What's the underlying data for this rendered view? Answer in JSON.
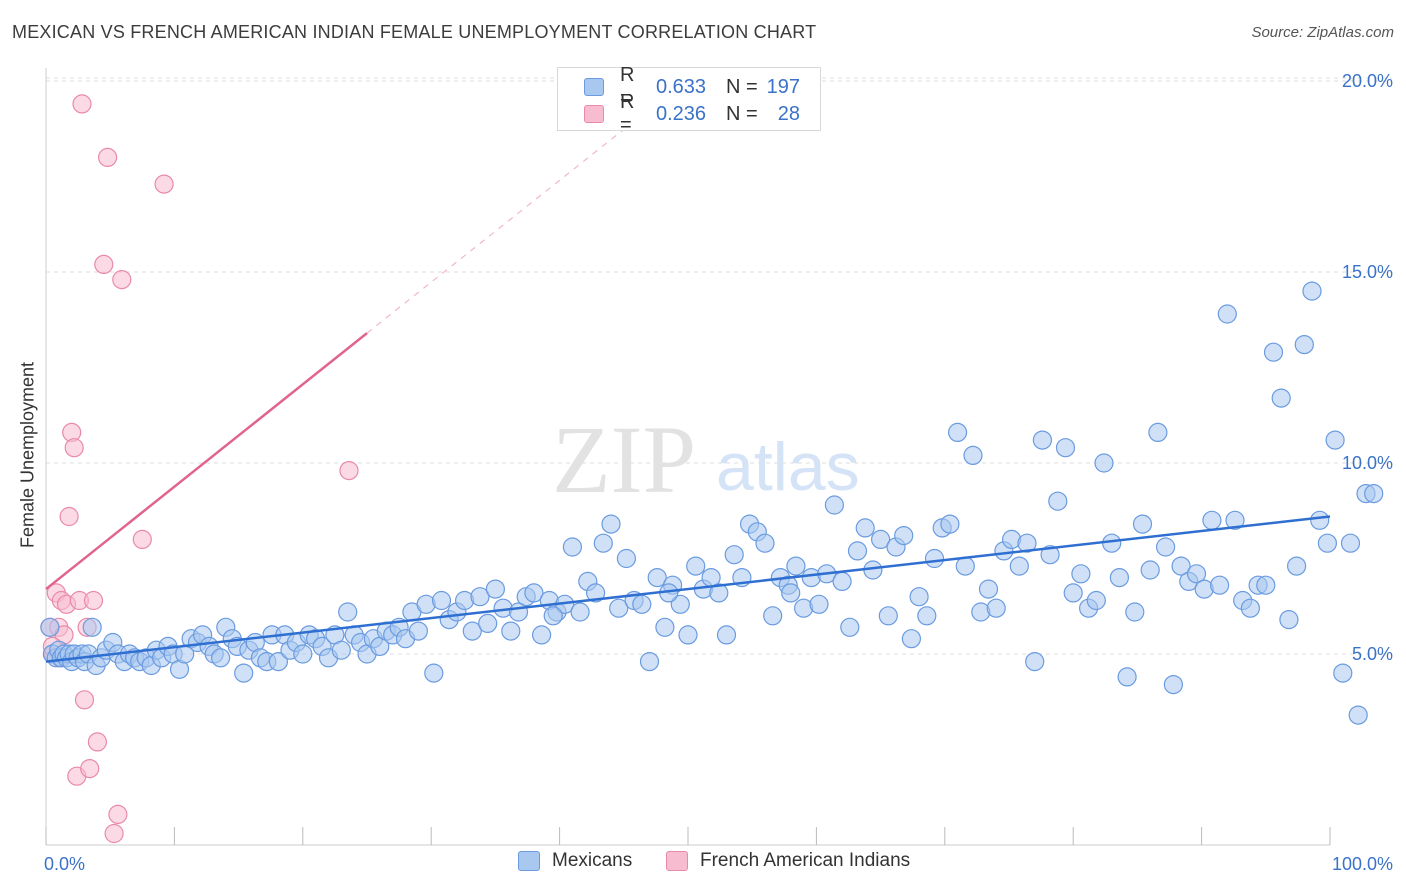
{
  "header": {
    "title": "MEXICAN VS FRENCH AMERICAN INDIAN FEMALE UNEMPLOYMENT CORRELATION CHART",
    "source": "Source: ZipAtlas.com"
  },
  "watermark": {
    "zip": "ZIP",
    "atlas": "atlas"
  },
  "legend_top": {
    "rows": [
      {
        "r_label": "R =",
        "r_value": "0.633",
        "n_label": "N =",
        "n_value": "197"
      },
      {
        "r_label": "R =",
        "r_value": "0.236",
        "n_label": "N =",
        "n_value": "28"
      }
    ]
  },
  "legend_bottom": {
    "items": [
      {
        "label": "Mexicans"
      },
      {
        "label": "French American Indians"
      }
    ]
  },
  "colors": {
    "blue_fill": "#a9c8f0",
    "blue_stroke": "#6a9be0",
    "blue_line": "#2f6fd1",
    "pink_fill": "#f7bcd0",
    "pink_stroke": "#e98aa9",
    "pink_line": "#e0648e",
    "grid": "#dddddd",
    "tick_text": "#3a72c9"
  },
  "chart_data": {
    "type": "scatter",
    "title": "MEXICAN VS FRENCH AMERICAN INDIAN FEMALE UNEMPLOYMENT CORRELATION CHART",
    "xlabel": "",
    "ylabel": "Female Unemployment",
    "xlim": [
      0,
      100
    ],
    "ylim": [
      0,
      20.5
    ],
    "x_tick_labels": [
      "0.0%",
      "100.0%"
    ],
    "y_ticks": [
      5,
      10,
      15,
      20
    ],
    "y_tick_labels": [
      "5.0%",
      "10.0%",
      "15.0%",
      "20.0%"
    ],
    "grid": true,
    "legend_position": "top-center",
    "series": [
      {
        "name": "Mexicans",
        "R": 0.633,
        "N": 197,
        "trend": {
          "x0": 0,
          "y0": 4.8,
          "x1": 100,
          "y1": 8.6
        },
        "points": [
          [
            0.3,
            5.7
          ],
          [
            0.5,
            5.0
          ],
          [
            0.8,
            4.9
          ],
          [
            1.0,
            5.1
          ],
          [
            1.2,
            4.9
          ],
          [
            1.4,
            5.0
          ],
          [
            1.6,
            4.9
          ],
          [
            1.8,
            5.0
          ],
          [
            2.0,
            4.8
          ],
          [
            2.2,
            5.0
          ],
          [
            2.5,
            4.9
          ],
          [
            2.8,
            5.0
          ],
          [
            3.0,
            4.8
          ],
          [
            3.3,
            5.0
          ],
          [
            3.6,
            5.7
          ],
          [
            3.9,
            4.7
          ],
          [
            4.3,
            4.9
          ],
          [
            4.7,
            5.1
          ],
          [
            5.2,
            5.3
          ],
          [
            5.6,
            5.0
          ],
          [
            6.1,
            4.8
          ],
          [
            6.5,
            5.0
          ],
          [
            6.9,
            4.9
          ],
          [
            7.3,
            4.8
          ],
          [
            7.8,
            4.9
          ],
          [
            8.2,
            4.7
          ],
          [
            8.6,
            5.1
          ],
          [
            9.0,
            4.9
          ],
          [
            9.5,
            5.2
          ],
          [
            9.9,
            5.0
          ],
          [
            10.4,
            4.6
          ],
          [
            10.8,
            5.0
          ],
          [
            11.3,
            5.4
          ],
          [
            11.8,
            5.3
          ],
          [
            12.2,
            5.5
          ],
          [
            12.7,
            5.2
          ],
          [
            13.1,
            5.0
          ],
          [
            13.6,
            4.9
          ],
          [
            14.0,
            5.7
          ],
          [
            14.5,
            5.4
          ],
          [
            14.9,
            5.2
          ],
          [
            15.4,
            4.5
          ],
          [
            15.8,
            5.1
          ],
          [
            16.3,
            5.3
          ],
          [
            16.7,
            4.9
          ],
          [
            17.2,
            4.8
          ],
          [
            17.6,
            5.5
          ],
          [
            18.1,
            4.8
          ],
          [
            18.6,
            5.5
          ],
          [
            19.0,
            5.1
          ],
          [
            19.5,
            5.3
          ],
          [
            20.0,
            5.0
          ],
          [
            20.5,
            5.5
          ],
          [
            21.0,
            5.4
          ],
          [
            21.5,
            5.2
          ],
          [
            22.0,
            4.9
          ],
          [
            22.5,
            5.5
          ],
          [
            23.0,
            5.1
          ],
          [
            23.5,
            6.1
          ],
          [
            24.0,
            5.5
          ],
          [
            24.5,
            5.3
          ],
          [
            25.0,
            5.0
          ],
          [
            25.5,
            5.4
          ],
          [
            26.0,
            5.2
          ],
          [
            26.5,
            5.6
          ],
          [
            27.0,
            5.5
          ],
          [
            27.5,
            5.7
          ],
          [
            28.0,
            5.4
          ],
          [
            28.5,
            6.1
          ],
          [
            29.0,
            5.6
          ],
          [
            29.6,
            6.3
          ],
          [
            30.2,
            4.5
          ],
          [
            30.8,
            6.4
          ],
          [
            31.4,
            5.9
          ],
          [
            32.0,
            6.1
          ],
          [
            32.6,
            6.4
          ],
          [
            33.2,
            5.6
          ],
          [
            33.8,
            6.5
          ],
          [
            34.4,
            5.8
          ],
          [
            35.0,
            6.7
          ],
          [
            35.6,
            6.2
          ],
          [
            36.2,
            5.6
          ],
          [
            36.8,
            6.1
          ],
          [
            37.4,
            6.5
          ],
          [
            38.0,
            6.6
          ],
          [
            38.6,
            5.5
          ],
          [
            39.2,
            6.4
          ],
          [
            39.8,
            6.1
          ],
          [
            40.4,
            6.3
          ],
          [
            41.0,
            7.8
          ],
          [
            41.6,
            6.1
          ],
          [
            42.2,
            6.9
          ],
          [
            42.8,
            6.6
          ],
          [
            43.4,
            7.9
          ],
          [
            44.0,
            8.4
          ],
          [
            44.6,
            6.2
          ],
          [
            45.2,
            7.5
          ],
          [
            45.8,
            6.4
          ],
          [
            46.4,
            6.3
          ],
          [
            47.0,
            4.8
          ],
          [
            47.6,
            7.0
          ],
          [
            48.2,
            5.7
          ],
          [
            48.8,
            6.8
          ],
          [
            49.4,
            6.3
          ],
          [
            50.0,
            5.5
          ],
          [
            50.6,
            7.3
          ],
          [
            51.2,
            6.7
          ],
          [
            51.8,
            7.0
          ],
          [
            52.4,
            6.6
          ],
          [
            53.0,
            5.5
          ],
          [
            53.6,
            7.6
          ],
          [
            54.2,
            7.0
          ],
          [
            54.8,
            8.4
          ],
          [
            55.4,
            8.2
          ],
          [
            56.0,
            7.9
          ],
          [
            56.6,
            6.0
          ],
          [
            57.2,
            7.0
          ],
          [
            57.8,
            6.8
          ],
          [
            58.4,
            7.3
          ],
          [
            59.0,
            6.2
          ],
          [
            59.6,
            7.0
          ],
          [
            60.2,
            6.3
          ],
          [
            60.8,
            7.1
          ],
          [
            61.4,
            8.9
          ],
          [
            62.0,
            6.9
          ],
          [
            62.6,
            5.7
          ],
          [
            63.2,
            7.7
          ],
          [
            63.8,
            8.3
          ],
          [
            64.4,
            7.2
          ],
          [
            65.0,
            8.0
          ],
          [
            65.6,
            6.0
          ],
          [
            66.2,
            7.8
          ],
          [
            66.8,
            8.1
          ],
          [
            67.4,
            5.4
          ],
          [
            68.0,
            6.5
          ],
          [
            68.6,
            6.0
          ],
          [
            69.2,
            7.5
          ],
          [
            69.8,
            8.3
          ],
          [
            70.4,
            8.4
          ],
          [
            71.0,
            10.8
          ],
          [
            71.6,
            7.3
          ],
          [
            72.2,
            10.2
          ],
          [
            72.8,
            6.1
          ],
          [
            73.4,
            6.7
          ],
          [
            74.0,
            6.2
          ],
          [
            74.6,
            7.7
          ],
          [
            75.2,
            8.0
          ],
          [
            75.8,
            7.3
          ],
          [
            76.4,
            7.9
          ],
          [
            77.0,
            4.8
          ],
          [
            77.6,
            10.6
          ],
          [
            78.2,
            7.6
          ],
          [
            78.8,
            9.0
          ],
          [
            79.4,
            10.4
          ],
          [
            80.0,
            6.6
          ],
          [
            80.6,
            7.1
          ],
          [
            81.2,
            6.2
          ],
          [
            81.8,
            6.4
          ],
          [
            82.4,
            10.0
          ],
          [
            83.0,
            7.9
          ],
          [
            83.6,
            7.0
          ],
          [
            84.2,
            4.4
          ],
          [
            84.8,
            6.1
          ],
          [
            85.4,
            8.4
          ],
          [
            86.0,
            7.2
          ],
          [
            86.6,
            10.8
          ],
          [
            87.2,
            7.8
          ],
          [
            87.8,
            4.2
          ],
          [
            88.4,
            7.3
          ],
          [
            89.0,
            6.9
          ],
          [
            89.6,
            7.1
          ],
          [
            90.2,
            6.7
          ],
          [
            90.8,
            8.5
          ],
          [
            91.4,
            6.8
          ],
          [
            92.0,
            13.9
          ],
          [
            92.6,
            8.5
          ],
          [
            93.2,
            6.4
          ],
          [
            93.8,
            6.2
          ],
          [
            94.4,
            6.8
          ],
          [
            95.0,
            6.8
          ],
          [
            95.6,
            12.9
          ],
          [
            96.2,
            11.7
          ],
          [
            96.8,
            5.9
          ],
          [
            97.4,
            7.3
          ],
          [
            98.0,
            13.1
          ],
          [
            98.6,
            14.5
          ],
          [
            99.2,
            8.5
          ],
          [
            99.8,
            7.9
          ],
          [
            100.4,
            10.6
          ],
          [
            101.0,
            4.5
          ],
          [
            101.6,
            7.9
          ],
          [
            102.2,
            3.4
          ],
          [
            102.8,
            9.2
          ],
          [
            103.4,
            9.2
          ],
          [
            39.5,
            6.0
          ],
          [
            48.5,
            6.6
          ],
          [
            58.0,
            6.6
          ]
        ]
      },
      {
        "name": "French American Indians",
        "R": 0.236,
        "N": 28,
        "trend": {
          "x0": 0,
          "y0": 6.7,
          "x1": 25,
          "y1": 13.4,
          "extend_to_x": 46,
          "extend_to_y": 19.0
        },
        "points": [
          [
            0.3,
            5.7
          ],
          [
            0.6,
            5.0
          ],
          [
            0.8,
            6.6
          ],
          [
            1.0,
            5.7
          ],
          [
            1.2,
            6.4
          ],
          [
            1.4,
            5.5
          ],
          [
            1.6,
            6.3
          ],
          [
            1.8,
            8.6
          ],
          [
            2.0,
            10.8
          ],
          [
            2.2,
            10.4
          ],
          [
            2.4,
            1.8
          ],
          [
            2.6,
            6.4
          ],
          [
            2.8,
            19.4
          ],
          [
            3.0,
            3.8
          ],
          [
            3.2,
            5.7
          ],
          [
            3.4,
            2.0
          ],
          [
            3.7,
            6.4
          ],
          [
            4.0,
            2.7
          ],
          [
            4.5,
            15.2
          ],
          [
            4.8,
            18.0
          ],
          [
            5.3,
            0.3
          ],
          [
            5.6,
            0.8
          ],
          [
            5.9,
            14.8
          ],
          [
            7.5,
            8.0
          ],
          [
            9.2,
            17.3
          ],
          [
            23.6,
            9.8
          ],
          [
            0.5,
            5.2
          ],
          [
            1.1,
            4.9
          ]
        ]
      }
    ]
  }
}
